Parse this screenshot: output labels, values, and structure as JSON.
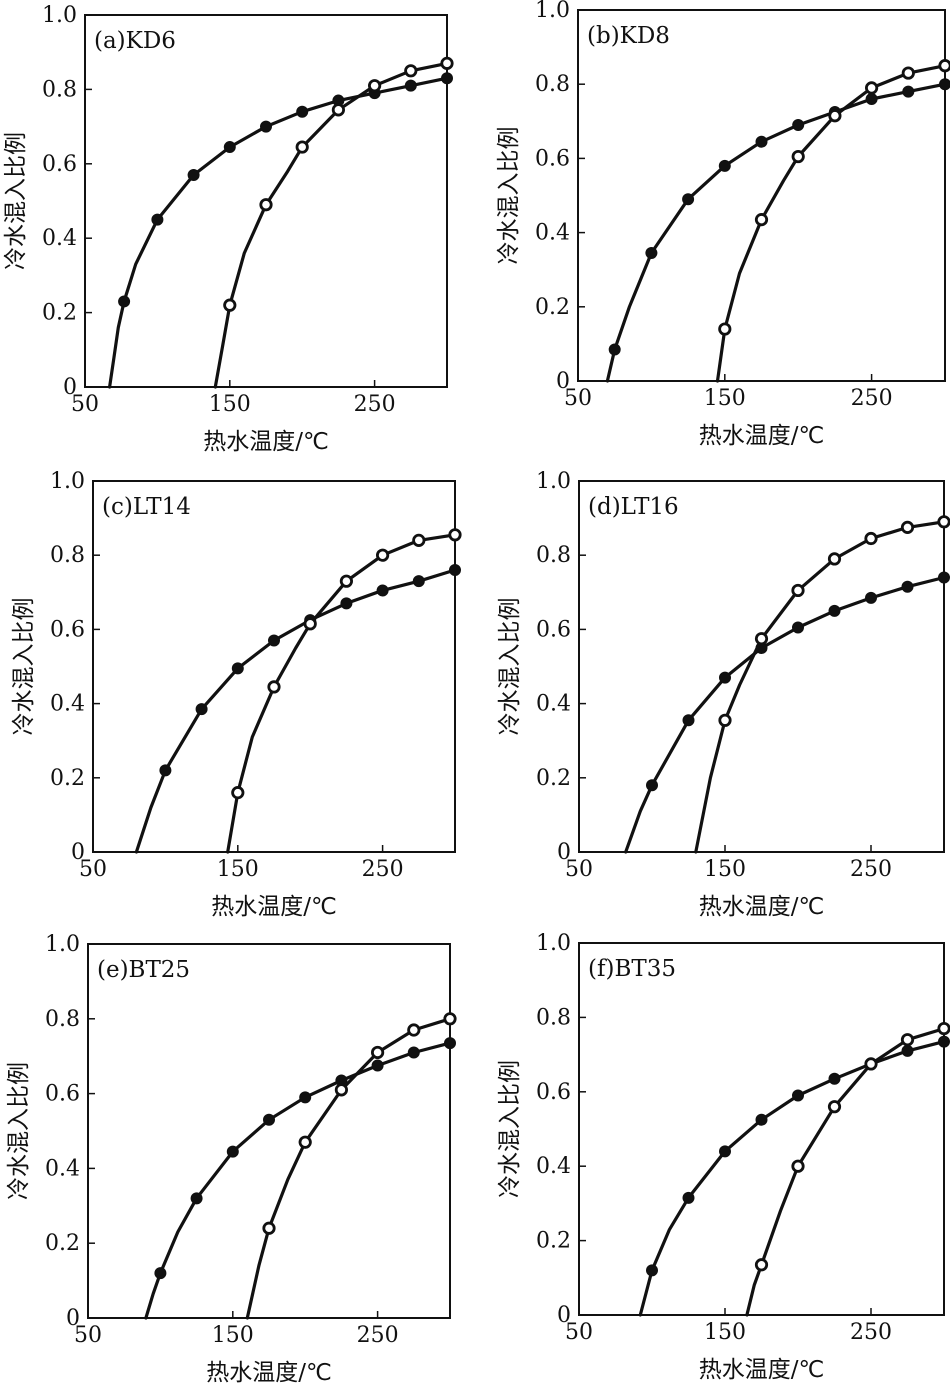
{
  "figure": {
    "xlabel": "热水温度/℃",
    "ylabel": "冷水混入比例"
  },
  "chart_data": [
    {
      "type": "line",
      "title": "(a)KD6",
      "xlabel": "热水温度/℃",
      "ylabel": "冷水混入比例",
      "xlim": [
        50,
        300
      ],
      "ylim": [
        0,
        1
      ],
      "xticks": [
        "50",
        "150",
        "250"
      ],
      "yticks": [
        "0",
        "0.2",
        "0.4",
        "0.6",
        "0.8",
        "1.0"
      ],
      "grid": false,
      "series": [
        {
          "marker": "filled",
          "curve_x": [
            67,
            70,
            73,
            77,
            85,
            100,
            125,
            150,
            175,
            200,
            225,
            250,
            275,
            300
          ],
          "curve_y": [
            0,
            0.08,
            0.16,
            0.23,
            0.33,
            0.45,
            0.57,
            0.645,
            0.7,
            0.74,
            0.77,
            0.79,
            0.81,
            0.83
          ],
          "points_x": [
            77,
            100,
            125,
            150,
            175,
            200,
            225,
            250,
            275,
            300
          ],
          "points_y": [
            0.23,
            0.45,
            0.57,
            0.645,
            0.7,
            0.74,
            0.77,
            0.79,
            0.81,
            0.83
          ]
        },
        {
          "marker": "open",
          "curve_x": [
            140,
            145,
            150,
            160,
            175,
            190,
            200,
            225,
            250,
            275,
            300
          ],
          "curve_y": [
            0,
            0.11,
            0.22,
            0.36,
            0.49,
            0.58,
            0.645,
            0.745,
            0.81,
            0.85,
            0.87
          ],
          "points_x": [
            150,
            175,
            200,
            225,
            250,
            275,
            300
          ],
          "points_y": [
            0.22,
            0.49,
            0.645,
            0.745,
            0.81,
            0.85,
            0.87
          ]
        }
      ]
    },
    {
      "type": "line",
      "title": "(b)KD8",
      "xlabel": "热水温度/℃",
      "ylabel": "冷水混入比例",
      "xlim": [
        50,
        300
      ],
      "ylim": [
        0,
        1
      ],
      "xticks": [
        "50",
        "150",
        "250"
      ],
      "yticks": [
        "0",
        "0.2",
        "0.4",
        "0.6",
        "0.8",
        "1.0"
      ],
      "grid": false,
      "series": [
        {
          "marker": "filled",
          "curve_x": [
            70,
            75,
            85,
            100,
            125,
            150,
            175,
            200,
            225,
            250,
            275,
            300
          ],
          "curve_y": [
            0,
            0.085,
            0.2,
            0.345,
            0.49,
            0.58,
            0.645,
            0.69,
            0.725,
            0.76,
            0.78,
            0.8
          ],
          "points_x": [
            75,
            100,
            125,
            150,
            175,
            200,
            225,
            250,
            275,
            300
          ],
          "points_y": [
            0.085,
            0.345,
            0.49,
            0.58,
            0.645,
            0.69,
            0.725,
            0.76,
            0.78,
            0.8
          ]
        },
        {
          "marker": "open",
          "curve_x": [
            145,
            150,
            160,
            175,
            190,
            200,
            225,
            250,
            275,
            300
          ],
          "curve_y": [
            0,
            0.14,
            0.29,
            0.435,
            0.54,
            0.605,
            0.715,
            0.79,
            0.83,
            0.85
          ],
          "points_x": [
            150,
            175,
            200,
            225,
            250,
            275,
            300
          ],
          "points_y": [
            0.14,
            0.435,
            0.605,
            0.715,
            0.79,
            0.83,
            0.85
          ]
        }
      ]
    },
    {
      "type": "line",
      "title": "(c)LT14",
      "xlabel": "热水温度/℃",
      "ylabel": "冷水混入比例",
      "xlim": [
        50,
        300
      ],
      "ylim": [
        0,
        1
      ],
      "xticks": [
        "50",
        "150",
        "250"
      ],
      "yticks": [
        "0",
        "0.2",
        "0.4",
        "0.6",
        "0.8",
        "1.0"
      ],
      "grid": false,
      "series": [
        {
          "marker": "filled",
          "curve_x": [
            80,
            90,
            100,
            125,
            150,
            175,
            200,
            225,
            250,
            275,
            300
          ],
          "curve_y": [
            0,
            0.12,
            0.22,
            0.385,
            0.495,
            0.57,
            0.625,
            0.67,
            0.705,
            0.73,
            0.76
          ],
          "points_x": [
            100,
            125,
            150,
            175,
            200,
            225,
            250,
            275,
            300
          ],
          "points_y": [
            0.22,
            0.385,
            0.495,
            0.57,
            0.625,
            0.67,
            0.705,
            0.73,
            0.76
          ]
        },
        {
          "marker": "open",
          "curve_x": [
            143,
            150,
            160,
            175,
            190,
            200,
            225,
            250,
            275,
            300
          ],
          "curve_y": [
            0,
            0.16,
            0.31,
            0.445,
            0.55,
            0.615,
            0.73,
            0.8,
            0.84,
            0.855
          ],
          "points_x": [
            150,
            175,
            200,
            225,
            250,
            275,
            300
          ],
          "points_y": [
            0.16,
            0.445,
            0.615,
            0.73,
            0.8,
            0.84,
            0.855
          ]
        }
      ]
    },
    {
      "type": "line",
      "title": "(d)LT16",
      "xlabel": "热水温度/℃",
      "ylabel": "冷水混入比例",
      "xlim": [
        50,
        300
      ],
      "ylim": [
        0,
        1
      ],
      "xticks": [
        "50",
        "150",
        "250"
      ],
      "yticks": [
        "0",
        "0.2",
        "0.4",
        "0.6",
        "0.8",
        "1.0"
      ],
      "grid": false,
      "series": [
        {
          "marker": "filled",
          "curve_x": [
            82,
            92,
            100,
            125,
            150,
            175,
            200,
            225,
            250,
            275,
            300
          ],
          "curve_y": [
            0,
            0.11,
            0.18,
            0.355,
            0.47,
            0.55,
            0.605,
            0.65,
            0.685,
            0.715,
            0.74
          ],
          "points_x": [
            100,
            125,
            150,
            175,
            200,
            225,
            250,
            275,
            300
          ],
          "points_y": [
            0.18,
            0.355,
            0.47,
            0.55,
            0.605,
            0.65,
            0.685,
            0.715,
            0.74
          ]
        },
        {
          "marker": "open",
          "curve_x": [
            130,
            140,
            150,
            160,
            175,
            200,
            225,
            250,
            275,
            300
          ],
          "curve_y": [
            0,
            0.2,
            0.355,
            0.45,
            0.575,
            0.705,
            0.79,
            0.845,
            0.875,
            0.89
          ],
          "points_x": [
            150,
            175,
            200,
            225,
            250,
            275,
            300
          ],
          "points_y": [
            0.355,
            0.575,
            0.705,
            0.79,
            0.845,
            0.875,
            0.89
          ]
        }
      ]
    },
    {
      "type": "line",
      "title": "(e)BT25",
      "xlabel": "热水温度/℃",
      "ylabel": "冷水混入比例",
      "xlim": [
        50,
        300
      ],
      "ylim": [
        0,
        1
      ],
      "xticks": [
        "50",
        "150",
        "250"
      ],
      "yticks": [
        "0",
        "0.2",
        "0.4",
        "0.6",
        "0.8",
        "1.0"
      ],
      "grid": false,
      "series": [
        {
          "marker": "filled",
          "curve_x": [
            90,
            95,
            100,
            112,
            125,
            150,
            175,
            200,
            225,
            250,
            275,
            300
          ],
          "curve_y": [
            0,
            0.065,
            0.12,
            0.23,
            0.32,
            0.445,
            0.53,
            0.59,
            0.635,
            0.675,
            0.71,
            0.735
          ],
          "points_x": [
            100,
            125,
            150,
            175,
            200,
            225,
            250,
            275,
            300
          ],
          "points_y": [
            0.12,
            0.32,
            0.445,
            0.53,
            0.59,
            0.635,
            0.675,
            0.71,
            0.735
          ]
        },
        {
          "marker": "open",
          "curve_x": [
            160,
            168,
            175,
            188,
            200,
            225,
            250,
            275,
            300
          ],
          "curve_y": [
            0,
            0.14,
            0.24,
            0.37,
            0.47,
            0.61,
            0.71,
            0.77,
            0.8
          ],
          "points_x": [
            175,
            200,
            225,
            250,
            275,
            300
          ],
          "points_y": [
            0.24,
            0.47,
            0.61,
            0.71,
            0.77,
            0.8
          ]
        }
      ]
    },
    {
      "type": "line",
      "title": "(f)BT35",
      "xlabel": "热水温度/℃",
      "ylabel": "冷水混入比例",
      "xlim": [
        50,
        300
      ],
      "ylim": [
        0,
        1
      ],
      "xticks": [
        "50",
        "150",
        "250"
      ],
      "yticks": [
        "0",
        "0.2",
        "0.4",
        "0.6",
        "0.8",
        "1.0"
      ],
      "grid": false,
      "series": [
        {
          "marker": "filled",
          "curve_x": [
            92,
            97,
            100,
            112,
            125,
            150,
            175,
            200,
            225,
            250,
            275,
            300
          ],
          "curve_y": [
            0,
            0.075,
            0.12,
            0.23,
            0.315,
            0.44,
            0.525,
            0.59,
            0.635,
            0.675,
            0.71,
            0.735
          ],
          "points_x": [
            100,
            125,
            150,
            175,
            200,
            225,
            250,
            275,
            300
          ],
          "points_y": [
            0.12,
            0.315,
            0.44,
            0.525,
            0.59,
            0.635,
            0.675,
            0.71,
            0.735
          ]
        },
        {
          "marker": "open",
          "curve_x": [
            165,
            170,
            175,
            188,
            200,
            225,
            250,
            275,
            300
          ],
          "curve_y": [
            0,
            0.08,
            0.135,
            0.28,
            0.4,
            0.56,
            0.675,
            0.74,
            0.77
          ],
          "points_x": [
            175,
            200,
            225,
            250,
            275,
            300
          ],
          "points_y": [
            0.135,
            0.4,
            0.56,
            0.675,
            0.74,
            0.77
          ]
        }
      ]
    }
  ]
}
